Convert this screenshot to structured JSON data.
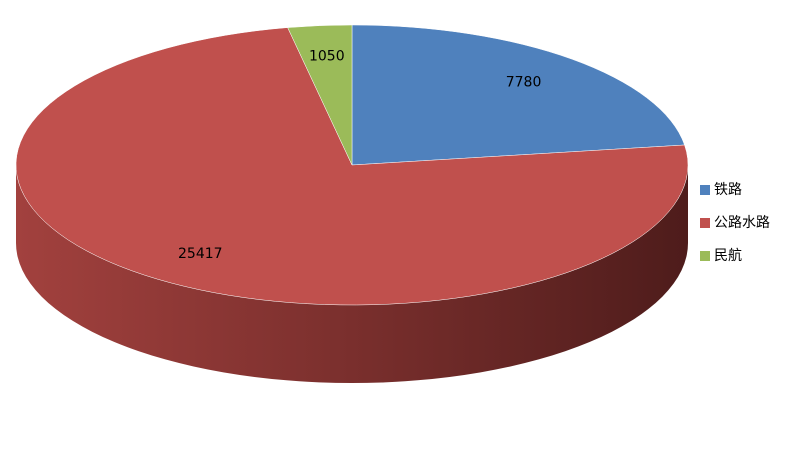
{
  "chart_data": {
    "type": "pie",
    "categories": [
      "铁路",
      "公路水路",
      "民航"
    ],
    "values": [
      7780,
      25417,
      1050
    ],
    "colors": [
      "#4f81bd",
      "#c0504d",
      "#9bbb59"
    ],
    "legend": "right"
  }
}
